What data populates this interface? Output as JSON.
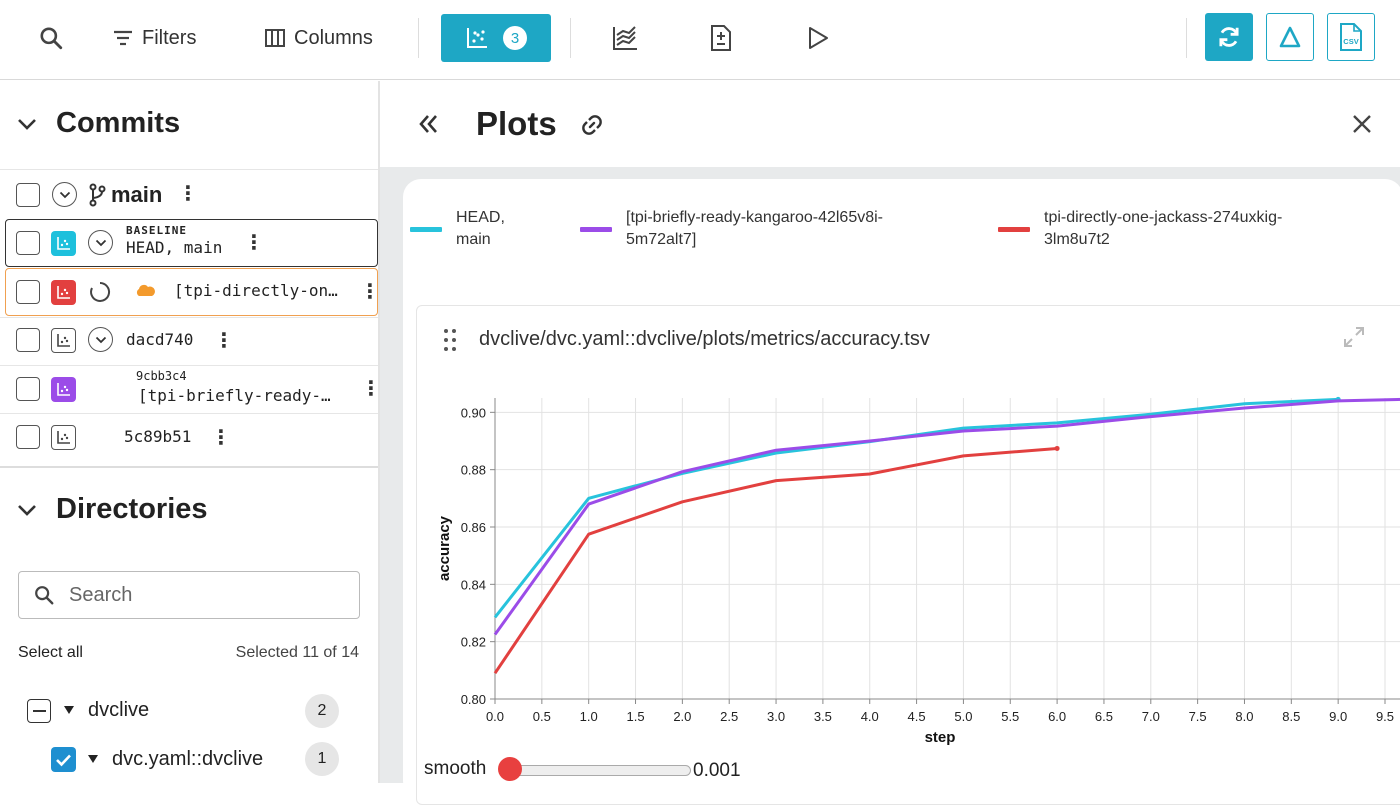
{
  "toolbar": {
    "filters_label": "Filters",
    "columns_label": "Columns",
    "plots_count": "3",
    "csv_label": "CSV"
  },
  "commits": {
    "title": "Commits",
    "branch": "main",
    "rows": [
      {
        "tag": "BASELINE",
        "label": "HEAD, main",
        "color": "#1ec0dc"
      },
      {
        "label": "[tpi-directly-on…",
        "color": "#e2403f"
      },
      {
        "label": "dacd740"
      },
      {
        "tag": "9cbb3c4",
        "label": "[tpi-briefly-ready-…",
        "color": "#9b4ce8"
      },
      {
        "label": "5c89b51"
      }
    ]
  },
  "directories": {
    "title": "Directories",
    "search_placeholder": "Search",
    "select_all": "Select all",
    "selected": "Selected 11 of 14",
    "items": [
      {
        "label": "dvclive",
        "count": "2"
      },
      {
        "label": "dvc.yaml::dvclive",
        "count": "1"
      }
    ]
  },
  "plots": {
    "title": "Plots",
    "legend": [
      {
        "line1": "HEAD,",
        "line2": "main",
        "color": "#28c3dc"
      },
      {
        "line1": "[tpi-briefly-ready-kangaroo-42l65v8i-",
        "line2": "5m72alt7]",
        "color": "#9b4ce8"
      },
      {
        "line1": "tpi-directly-one-jackass-274uxkig-",
        "line2": "3lm8u7t2",
        "color": "#e2403f"
      }
    ],
    "plot_title": "dvclive/dvc.yaml::dvclive/plots/metrics/accuracy.tsv",
    "smooth_label": "smooth",
    "smooth_value": "0.001"
  },
  "chart_data": {
    "type": "line",
    "title": "",
    "xlabel": "step",
    "ylabel": "accuracy",
    "xlim": [
      0,
      9.5
    ],
    "ylim": [
      0.8,
      0.905
    ],
    "x_ticks": [
      "0.0",
      "0.5",
      "1.0",
      "1.5",
      "2.0",
      "2.5",
      "3.0",
      "3.5",
      "4.0",
      "4.5",
      "5.0",
      "5.5",
      "6.0",
      "6.5",
      "7.0",
      "7.5",
      "8.0",
      "8.5",
      "9.0",
      "9.5"
    ],
    "y_ticks": [
      "0.80",
      "0.82",
      "0.84",
      "0.86",
      "0.88",
      "0.90"
    ],
    "grid": true,
    "series": [
      {
        "name": "HEAD, main",
        "color": "#28c3dc",
        "x": [
          0,
          1,
          2,
          3,
          4,
          5,
          6,
          7,
          8,
          9
        ],
        "y": [
          0.8285,
          0.87,
          0.8787,
          0.8858,
          0.8898,
          0.8945,
          0.8963,
          0.8993,
          0.903,
          0.9045
        ]
      },
      {
        "name": "[tpi-briefly-ready-kangaroo-42l65v8i-5m72alt7]",
        "color": "#9b4ce8",
        "x": [
          0,
          1,
          2,
          3,
          4,
          5,
          6,
          7,
          8,
          9,
          9.7
        ],
        "y": [
          0.8225,
          0.868,
          0.8793,
          0.8868,
          0.89,
          0.8935,
          0.8952,
          0.8985,
          0.9015,
          0.904,
          0.9045
        ]
      },
      {
        "name": "tpi-directly-one-jackass-274uxkig-3lm8u7t2",
        "color": "#e2403f",
        "x": [
          0,
          1,
          2,
          3,
          4,
          5,
          6
        ],
        "y": [
          0.809,
          0.8575,
          0.8688,
          0.8762,
          0.8785,
          0.8848,
          0.8874
        ]
      }
    ]
  }
}
